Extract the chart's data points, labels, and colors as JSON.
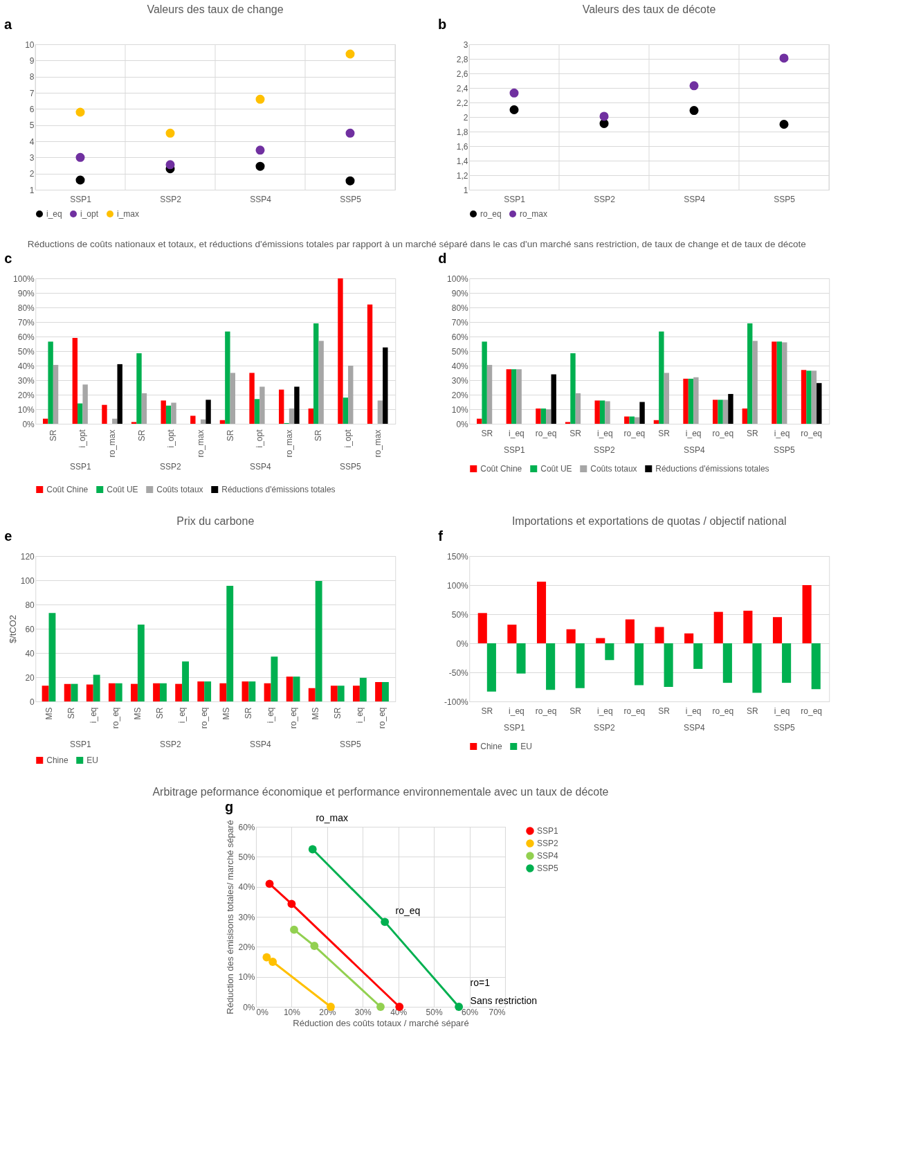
{
  "chart_data": [
    {
      "type": "scatter",
      "title": "Valeurs des taux de change",
      "annotations": [
        "a"
      ],
      "categories": [
        "SSP1",
        "SSP2",
        "SSP4",
        "SSP5"
      ],
      "ylim": [
        1,
        10
      ],
      "yticks": [
        1,
        2,
        3,
        4,
        5,
        6,
        7,
        8,
        9,
        10
      ],
      "grid": true,
      "legend": "bottom",
      "marker": "circle",
      "series": [
        {
          "name": "i_eq",
          "color": "#000000",
          "values": [
            1.6,
            2.3,
            2.45,
            1.55
          ]
        },
        {
          "name": "i_opt",
          "color": "#7030a0",
          "values": [
            3.0,
            2.55,
            3.45,
            4.5
          ]
        },
        {
          "name": "i_max",
          "color": "#ffc000",
          "values": [
            5.8,
            4.5,
            6.6,
            9.4
          ]
        }
      ]
    },
    {
      "type": "scatter",
      "title": "Valeurs des taux de décote",
      "annotations": [
        "b"
      ],
      "categories": [
        "SSP1",
        "SSP2",
        "SSP4",
        "SSP5"
      ],
      "ylim": [
        1,
        3
      ],
      "yticks": [
        1,
        {
          "value": 1.2,
          "label": "1,2"
        },
        {
          "value": 1.4,
          "label": "1,4"
        },
        {
          "value": 1.6,
          "label": "1,6"
        },
        {
          "value": 1.8,
          "label": "1,8"
        },
        2,
        {
          "value": 2.2,
          "label": "2,2"
        },
        {
          "value": 2.4,
          "label": "2,4"
        },
        {
          "value": 2.6,
          "label": "2,6"
        },
        {
          "value": 2.8,
          "label": "2,8"
        },
        3
      ],
      "grid": true,
      "legend": "bottom",
      "marker": "circle",
      "series": [
        {
          "name": "ro_eq",
          "color": "#000000",
          "values": [
            2.1,
            1.91,
            2.09,
            1.9
          ]
        },
        {
          "name": "ro_max",
          "color": "#7030a0",
          "values": [
            2.33,
            2.01,
            2.43,
            2.81
          ]
        }
      ]
    },
    {
      "type": "bar",
      "title": "Réductions de coûts nationaux et totaux, et réductions d'émissions totales par rapport à un marché séparé dans le cas d'un marché sans restriction, de taux de change et de taux de décote",
      "annotations": [
        "c",
        "SSP1",
        "SSP2",
        "SSP4",
        "SSP5"
      ],
      "categories": [
        "SR",
        "i_opt",
        "ro_max",
        "SR",
        "i_opt",
        "ro_max",
        "SR",
        "i_opt",
        "ro_max",
        "SR",
        "i_opt",
        "ro_max"
      ],
      "ylim": [
        0,
        100
      ],
      "yticks": [
        {
          "value": 0,
          "label": "0%"
        },
        {
          "value": 10,
          "label": "10%"
        },
        {
          "value": 20,
          "label": "20%"
        },
        {
          "value": 30,
          "label": "30%"
        },
        {
          "value": 40,
          "label": "40%"
        },
        {
          "value": 50,
          "label": "50%"
        },
        {
          "value": 60,
          "label": "60%"
        },
        {
          "value": 70,
          "label": "70%"
        },
        {
          "value": 80,
          "label": "80%"
        },
        {
          "value": 90,
          "label": "90%"
        },
        {
          "value": 100,
          "label": "100%"
        }
      ],
      "grid": "y",
      "legend": "bottom",
      "series": [
        {
          "name": "Coût Chine",
          "color": "#ff0000",
          "values": [
            3.5,
            59,
            13,
            1.2,
            16,
            5.5,
            2.5,
            35,
            23.5,
            10.5,
            100,
            82
          ]
        },
        {
          "name": "Coût UE",
          "color": "#00b050",
          "values": [
            56.5,
            14,
            null,
            48.5,
            12.5,
            null,
            63.5,
            17,
            0.5,
            69,
            18,
            null
          ]
        },
        {
          "name": "Coûts totaux",
          "color": "#a6a6a6",
          "values": [
            40.5,
            27,
            3.5,
            21,
            14.5,
            3,
            35,
            25.5,
            10.5,
            57,
            40,
            16
          ]
        },
        {
          "name": "Réductions d'émissions totales",
          "color": "#000000",
          "values": [
            null,
            null,
            41,
            null,
            null,
            16.5,
            null,
            null,
            25.5,
            null,
            null,
            52.5
          ]
        }
      ]
    },
    {
      "type": "bar",
      "annotations": [
        "d",
        "SSP1",
        "SSP2",
        "SSP4",
        "SSP5"
      ],
      "categories": [
        "SR",
        "i_eq",
        "ro_eq",
        "SR",
        "i_eq",
        "ro_eq",
        "SR",
        "i_eq",
        "ro_eq",
        "SR",
        "i_eq",
        "ro_eq"
      ],
      "ylim": [
        0,
        100
      ],
      "yticks": [
        {
          "value": 0,
          "label": "0%"
        },
        {
          "value": 10,
          "label": "10%"
        },
        {
          "value": 20,
          "label": "20%"
        },
        {
          "value": 30,
          "label": "30%"
        },
        {
          "value": 40,
          "label": "40%"
        },
        {
          "value": 50,
          "label": "50%"
        },
        {
          "value": 60,
          "label": "60%"
        },
        {
          "value": 70,
          "label": "70%"
        },
        {
          "value": 80,
          "label": "80%"
        },
        {
          "value": 90,
          "label": "90%"
        },
        {
          "value": 100,
          "label": "100%"
        }
      ],
      "grid": "y",
      "legend": "bottom",
      "series": [
        {
          "name": "Coût Chine",
          "color": "#ff0000",
          "values": [
            3.5,
            37.5,
            10.5,
            1.2,
            16,
            5,
            2.5,
            31,
            16.5,
            10.5,
            56.5,
            37
          ]
        },
        {
          "name": "Coût UE",
          "color": "#00b050",
          "values": [
            56.5,
            37.5,
            10.5,
            48.5,
            16,
            5,
            63.5,
            31,
            16.5,
            69,
            56.5,
            36.5
          ]
        },
        {
          "name": "Coûts totaux",
          "color": "#a6a6a6",
          "values": [
            40.5,
            37.5,
            10,
            21,
            15.5,
            4.5,
            35,
            32,
            16.5,
            57,
            56,
            36.5
          ]
        },
        {
          "name": "Réductions d'émissions totales",
          "color": "#000000",
          "values": [
            null,
            null,
            34,
            null,
            null,
            15,
            null,
            null,
            20.5,
            null,
            null,
            28
          ]
        }
      ]
    },
    {
      "type": "bar",
      "title": "Prix du carbone",
      "ylabel": "$/tCO2",
      "annotations": [
        "e",
        "SSP1",
        "SSP2",
        "SSP4",
        "SSP5"
      ],
      "categories": [
        "MS",
        "SR",
        "i_eq",
        "ro_eq",
        "MS",
        "SR",
        "i_eq",
        "ro_eq",
        "MS",
        "SR",
        "i_eq",
        "ro_eq",
        "MS",
        "SR",
        "i_eq",
        "ro_eq"
      ],
      "ylim": [
        0,
        120
      ],
      "yticks": [
        0,
        20,
        40,
        60,
        80,
        100,
        120
      ],
      "grid": "y",
      "legend": "bottom",
      "series": [
        {
          "name": "Chine",
          "color": "#ff0000",
          "values": [
            13,
            14.5,
            14,
            15,
            14.5,
            15,
            14.5,
            16.5,
            15,
            16.5,
            15,
            20.5,
            11,
            13,
            13,
            16
          ]
        },
        {
          "name": "EU",
          "color": "#00b050",
          "values": [
            73,
            14.5,
            22,
            15,
            63.5,
            15,
            33,
            16.5,
            95.5,
            16.5,
            37,
            20.5,
            99.5,
            13,
            19.5,
            16
          ]
        }
      ]
    },
    {
      "type": "bar",
      "title": "Importations et exportations de quotas / objectif national",
      "annotations": [
        "f",
        "SSP1",
        "SSP2",
        "SSP4",
        "SSP5"
      ],
      "categories": [
        "SR",
        "i_eq",
        "ro_eq",
        "SR",
        "i_eq",
        "ro_eq",
        "SR",
        "i_eq",
        "ro_eq",
        "SR",
        "i_eq",
        "ro_eq"
      ],
      "ylim": [
        -100,
        150
      ],
      "yticks": [
        {
          "value": -100,
          "label": "-100%"
        },
        {
          "value": -50,
          "label": "-50%"
        },
        {
          "value": 0,
          "label": "0%"
        },
        {
          "value": 50,
          "label": "50%"
        },
        {
          "value": 100,
          "label": "100%"
        },
        {
          "value": 150,
          "label": "150%"
        }
      ],
      "grid": "y",
      "legend": "bottom",
      "series": [
        {
          "name": "Chine",
          "color": "#ff0000",
          "values": [
            52,
            32,
            106,
            24,
            9,
            41,
            28,
            17,
            54,
            56,
            45,
            100
          ]
        },
        {
          "name": "EU",
          "color": "#00b050",
          "values": [
            -83,
            -52,
            -80,
            -77,
            -29,
            -72,
            -75,
            -44,
            -68,
            -85,
            -68,
            -79
          ]
        }
      ]
    },
    {
      "type": "line",
      "title": "Arbitrage peformance économique et performance environnementale avec un taux de décote",
      "xlabel": "Réduction des coûts totaux / marché séparé",
      "ylabel": "Réduction des émisisons totales/ marché séparé",
      "annotations": [
        "g",
        "ro_max",
        "ro_eq",
        "ro=1",
        "Sans restriction"
      ],
      "xlim": [
        0,
        70
      ],
      "xticks": [
        {
          "value": 0,
          "label": "0%"
        },
        {
          "value": 10,
          "label": "10%"
        },
        {
          "value": 20,
          "label": "20%"
        },
        {
          "value": 30,
          "label": "30%"
        },
        {
          "value": 40,
          "label": "40%"
        },
        {
          "value": 50,
          "label": "50%"
        },
        {
          "value": 60,
          "label": "60%"
        },
        {
          "value": 70,
          "label": "70%"
        }
      ],
      "ylim": [
        0,
        60
      ],
      "yticks": [
        {
          "value": 0,
          "label": "0%"
        },
        {
          "value": 10,
          "label": "10%"
        },
        {
          "value": 20,
          "label": "20%"
        },
        {
          "value": 30,
          "label": "30%"
        },
        {
          "value": 40,
          "label": "40%"
        },
        {
          "value": 50,
          "label": "50%"
        },
        {
          "value": 60,
          "label": "60%"
        }
      ],
      "grid": true,
      "legend": "right",
      "marker": "circle",
      "line_style": "solid",
      "series": [
        {
          "name": "SSP1",
          "color": "#ff0000",
          "x": [
            3.8,
            10,
            40.3
          ],
          "values": [
            41,
            34.3,
            0
          ]
        },
        {
          "name": "SSP2",
          "color": "#ffc000",
          "x": [
            3,
            4.7,
            21
          ],
          "values": [
            16.5,
            15,
            0
          ]
        },
        {
          "name": "SSP4",
          "color": "#92d050",
          "x": [
            10.7,
            16.4,
            35
          ],
          "values": [
            25.7,
            20.3,
            0
          ]
        },
        {
          "name": "SSP5",
          "color": "#00b050",
          "x": [
            15.9,
            36.2,
            57
          ],
          "values": [
            52.5,
            28.3,
            0
          ]
        }
      ]
    }
  ]
}
